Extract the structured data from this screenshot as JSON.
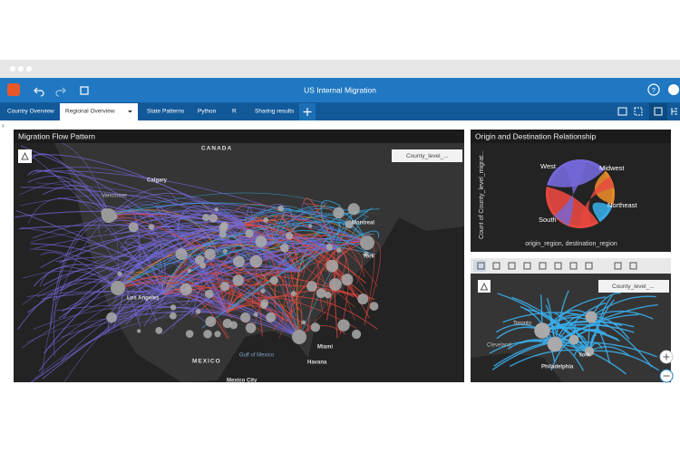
{
  "app": {
    "title": "US Internal Migration",
    "tabs": [
      "Country Overview",
      "Regional Overview",
      "State Patterns",
      "Python",
      "R",
      "Sharing results"
    ]
  },
  "map_panel": {
    "title": "Migration Flow Pattern",
    "legend": "County_level_...",
    "labels": [
      "CANADA",
      "Calgary",
      "Vancouver",
      "Montreal",
      "York",
      "Los Angeles",
      "MEXICO",
      "Gulf of Mexico",
      "Miami",
      "Havana",
      "Mexico City"
    ]
  },
  "chord_panel": {
    "title": "Origin and Destination Relationship",
    "y_label": "Count of County_level_migrat...",
    "x_label": "origin_region, destination_region",
    "regions": [
      "West",
      "Midwest",
      "Northeast",
      "South"
    ]
  },
  "detail_panel": {
    "legend": "County_level_...",
    "labels": [
      "Toronto",
      "Cleveland",
      "York",
      "Philadelphia"
    ]
  }
}
